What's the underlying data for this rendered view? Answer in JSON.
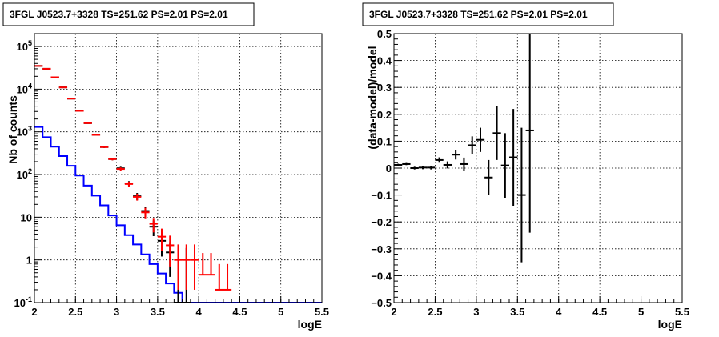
{
  "chart_data": [
    {
      "type": "line",
      "title": "3FGL J0523.7+3328 TS=251.62 PS=2.01 PS=2.01",
      "xlabel": "logE",
      "ylabel": "Nb of counts",
      "xlim": [
        2,
        5.5
      ],
      "ylim": [
        0.1,
        200000
      ],
      "yscale": "log",
      "grid": true,
      "x_ticks": [
        "2",
        "2.5",
        "3",
        "3.5",
        "4",
        "4.5",
        "5",
        "5.5"
      ],
      "y_ticks": [
        {
          "value": 0.1,
          "base": "10",
          "exp": "-1",
          "plain": ""
        },
        {
          "value": 1,
          "base": "",
          "exp": "",
          "plain": "1"
        },
        {
          "value": 10,
          "base": "",
          "exp": "",
          "plain": "10"
        },
        {
          "value": 100,
          "base": "10",
          "exp": "2",
          "plain": ""
        },
        {
          "value": 1000,
          "base": "10",
          "exp": "3",
          "plain": ""
        },
        {
          "value": 10000,
          "base": "10",
          "exp": "4",
          "plain": ""
        },
        {
          "value": 100000,
          "base": "10",
          "exp": "5",
          "plain": ""
        }
      ],
      "series": [
        {
          "color": "#0000ff",
          "style": "step",
          "bin_edges": [
            2.0,
            2.1,
            2.2,
            2.3,
            2.4,
            2.5,
            2.6,
            2.7,
            2.8,
            2.9,
            3.0,
            3.1,
            3.2,
            3.3,
            3.4,
            3.5,
            3.6,
            3.7,
            3.8,
            3.9,
            4.0,
            4.1,
            4.2,
            4.3,
            4.4,
            4.5,
            4.6,
            4.7,
            4.8,
            4.9,
            5.0,
            5.1,
            5.2,
            5.3,
            5.4,
            5.5
          ],
          "values": [
            1300,
            750,
            450,
            270,
            160,
            95,
            55,
            32,
            19,
            11,
            6.5,
            3.8,
            2.3,
            1.35,
            0.8,
            0.48,
            0.28,
            0.17,
            0.1,
            0.1,
            0.1,
            0.1,
            0.1,
            0.1,
            0.1,
            0.1,
            0.1,
            0.1,
            0.1,
            0.1,
            0.1,
            0.1,
            0.1,
            0.1,
            0.1
          ]
        },
        {
          "color": "#000000",
          "style": "errorbar",
          "x": [
            2.05,
            2.15,
            2.25,
            2.35,
            2.45,
            2.55,
            2.65,
            2.75,
            2.85,
            2.95,
            3.05,
            3.15,
            3.25,
            3.35,
            3.45,
            3.55,
            3.65,
            3.75,
            3.85
          ],
          "y": [
            35000,
            30000,
            19000,
            11000,
            6000,
            3100,
            1600,
            850,
            440,
            230,
            140,
            62,
            31,
            14,
            6,
            2.8,
            1.5,
            0.1,
            0.1
          ],
          "yerr_low": [
            200,
            180,
            140,
            100,
            80,
            55,
            40,
            30,
            21,
            15,
            12,
            8,
            6,
            3.7,
            2.4,
            1.6,
            1.1,
            0,
            0
          ],
          "yerr_high": [
            200,
            180,
            140,
            100,
            80,
            55,
            40,
            30,
            21,
            15,
            12,
            8,
            6,
            3.7,
            2.4,
            1.6,
            1.1,
            1.8,
            1.8
          ]
        },
        {
          "color": "#ff0000",
          "style": "errorbar",
          "x": [
            2.05,
            2.15,
            2.25,
            2.35,
            2.45,
            2.55,
            2.65,
            2.75,
            2.85,
            2.95,
            3.05,
            3.15,
            3.25,
            3.35,
            3.45,
            3.55,
            3.65,
            3.75,
            3.85,
            3.95,
            4.05,
            4.15,
            4.25,
            4.35
          ],
          "y": [
            35000,
            30000,
            19000,
            11000,
            6000,
            3100,
            1600,
            850,
            440,
            230,
            135,
            60,
            30,
            13,
            7,
            3.5,
            2.2,
            1.0,
            1.0,
            1.0,
            0.45,
            0.45,
            0.2,
            0.2
          ],
          "yerr_low": [
            200,
            180,
            140,
            100,
            80,
            55,
            40,
            30,
            21,
            15,
            12,
            8,
            5.5,
            3.6,
            2.6,
            1.9,
            1.5,
            0.8,
            0.8,
            0.8,
            0,
            0,
            0,
            0
          ],
          "yerr_high": [
            200,
            180,
            140,
            100,
            80,
            55,
            40,
            30,
            21,
            15,
            12,
            8,
            5.5,
            3.6,
            2.6,
            1.9,
            1.5,
            1.3,
            1.3,
            1.3,
            1.0,
            1.0,
            0.6,
            0.6
          ]
        }
      ]
    },
    {
      "type": "scatter",
      "title": "3FGL J0523.7+3328 TS=251.62 PS=2.01 PS=2.01",
      "xlabel": "logE",
      "ylabel": "(data-model)/model",
      "xlim": [
        2,
        5.5
      ],
      "ylim": [
        -0.5,
        0.5
      ],
      "grid": true,
      "x_ticks": [
        "2",
        "2.5",
        "3",
        "3.5",
        "4",
        "4.5",
        "5",
        "5.5"
      ],
      "y_ticks": [
        "−0.5",
        "−0.4",
        "−0.3",
        "−0.2",
        "−0.1",
        "0",
        "0.1",
        "0.2",
        "0.3",
        "0.4",
        "0.5"
      ],
      "series": [
        {
          "color": "#000000",
          "style": "errorbar",
          "x": [
            2.05,
            2.15,
            2.25,
            2.35,
            2.45,
            2.55,
            2.65,
            2.75,
            2.85,
            2.95,
            3.05,
            3.15,
            3.25,
            3.35,
            3.45,
            3.55,
            3.65
          ],
          "y": [
            0.012,
            0.015,
            0.0,
            0.002,
            0.002,
            0.03,
            0.012,
            0.05,
            0.015,
            0.085,
            0.105,
            -0.035,
            0.13,
            0.01,
            0.04,
            -0.1,
            0.14
          ],
          "yerr": [
            0.004,
            0.004,
            0.005,
            0.006,
            0.007,
            0.01,
            0.013,
            0.018,
            0.024,
            0.033,
            0.045,
            0.065,
            0.1,
            0.12,
            0.18,
            0.25,
            0.38
          ]
        }
      ]
    }
  ]
}
